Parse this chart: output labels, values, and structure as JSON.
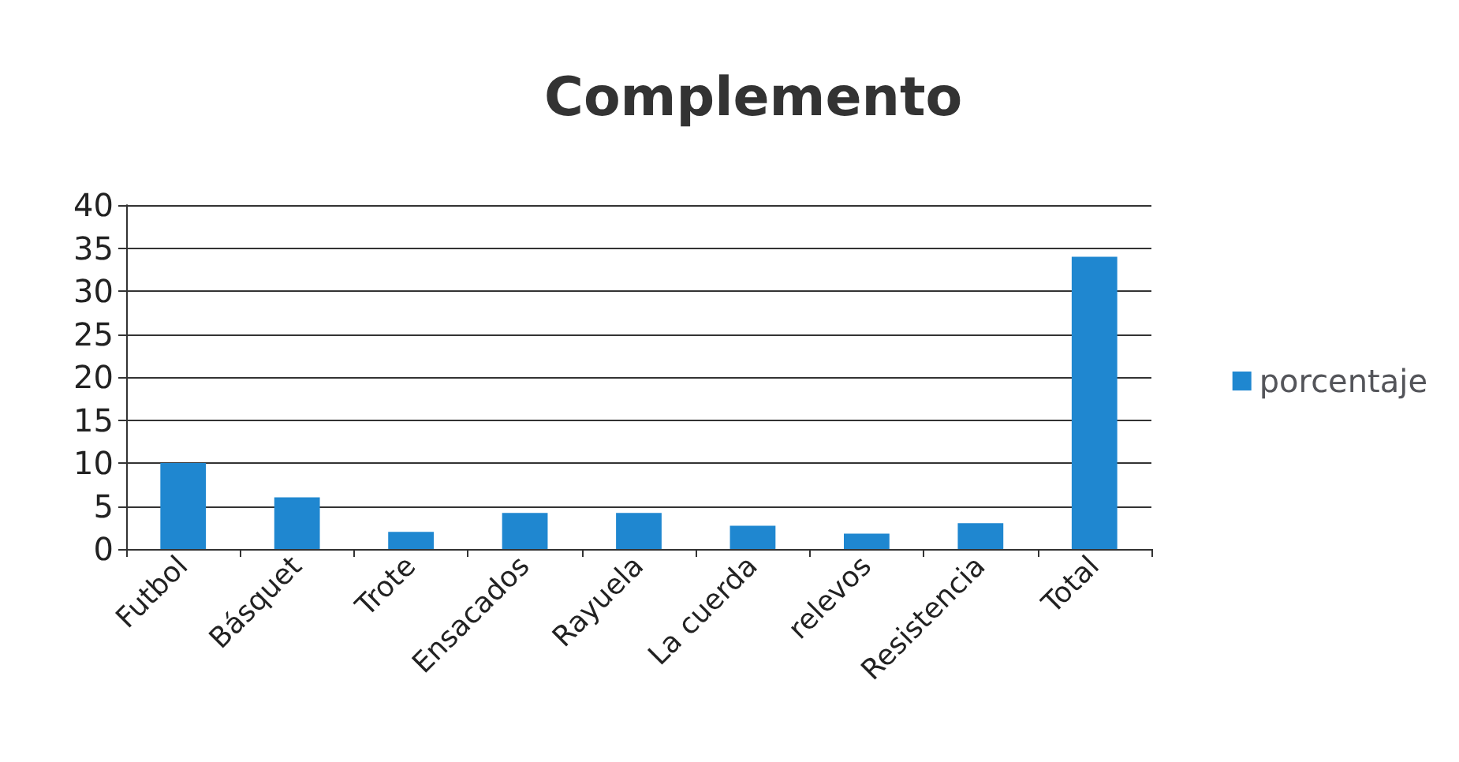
{
  "chart_data": {
    "type": "bar",
    "title": "Complemento",
    "categories": [
      "Futbol",
      "Básquet",
      "Trote",
      "Ensacados",
      "Rayuela",
      "La cuerda",
      "relevos",
      "Resistencia",
      "Total"
    ],
    "series": [
      {
        "name": "porcentaje",
        "color": "#1f87d0",
        "values": [
          10,
          6,
          2,
          4.2,
          4.2,
          2.7,
          1.8,
          3,
          34
        ]
      }
    ],
    "ylim": [
      0,
      40
    ],
    "yticks": [
      0,
      5,
      10,
      15,
      20,
      25,
      30,
      35,
      40
    ],
    "grid": "y",
    "legend": "right"
  }
}
